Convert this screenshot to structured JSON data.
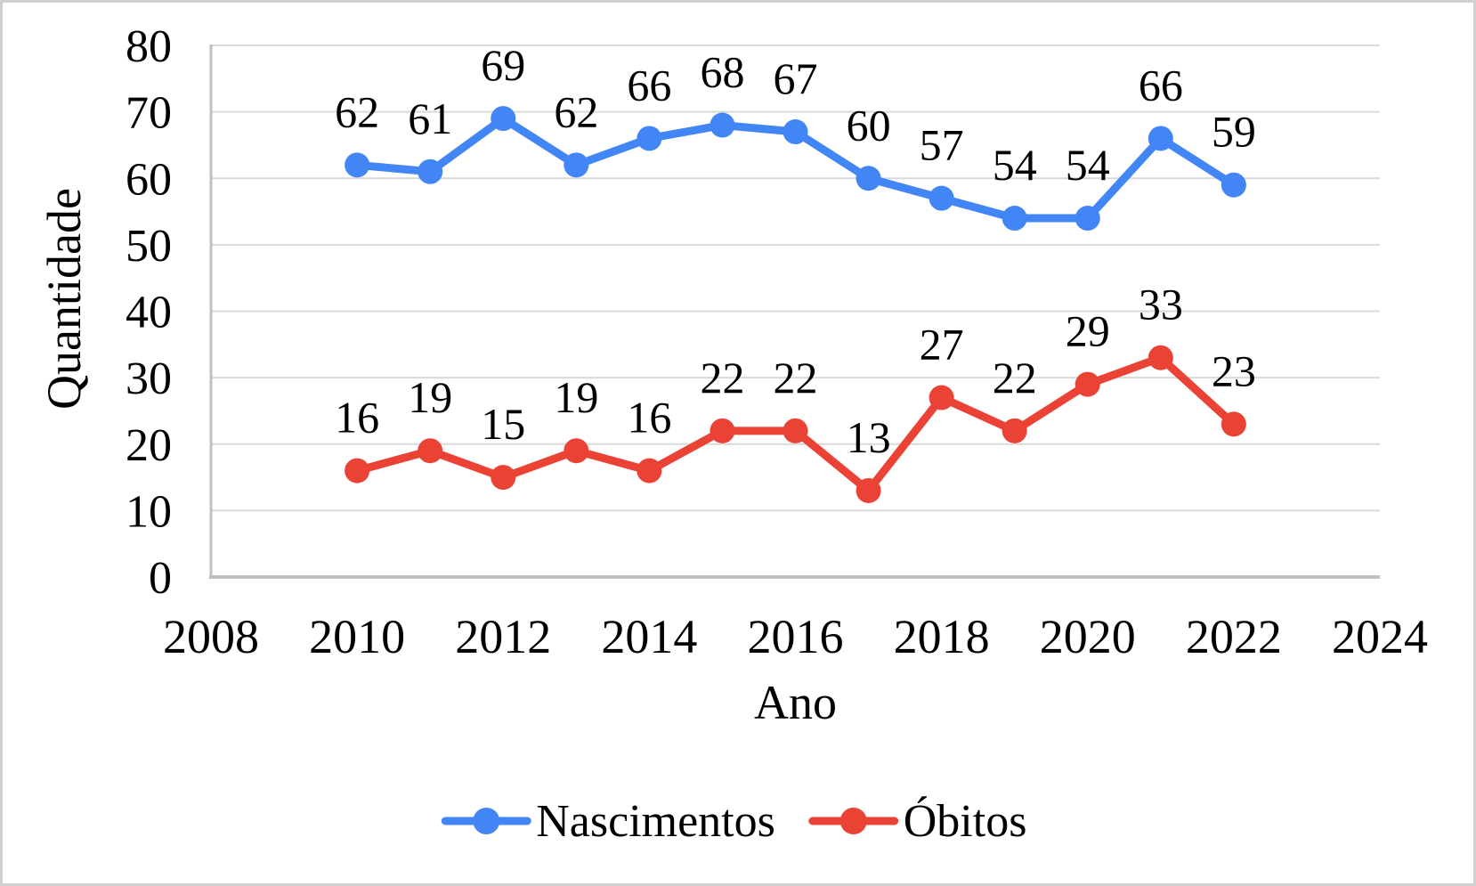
{
  "chart_data": {
    "type": "line",
    "title": "",
    "xlabel": "Ano",
    "ylabel": "Quantidade",
    "x": [
      2010,
      2011,
      2012,
      2013,
      2014,
      2015,
      2016,
      2017,
      2018,
      2019,
      2020,
      2021,
      2022
    ],
    "series": [
      {
        "name": "Nascimentos",
        "color": "#4285F4",
        "values": [
          62,
          61,
          69,
          62,
          66,
          68,
          67,
          60,
          57,
          54,
          54,
          66,
          59
        ]
      },
      {
        "name": "Óbitos",
        "color": "#EA4335",
        "values": [
          16,
          19,
          15,
          19,
          16,
          22,
          22,
          13,
          27,
          22,
          29,
          33,
          23
        ]
      }
    ],
    "xlim": [
      2008,
      2024
    ],
    "ylim": [
      0,
      80
    ],
    "x_ticks": [
      2008,
      2010,
      2012,
      2014,
      2016,
      2018,
      2020,
      2022,
      2024
    ],
    "y_ticks": [
      0,
      10,
      20,
      30,
      40,
      50,
      60,
      70,
      80
    ],
    "grid": "horizontal",
    "data_labels": true,
    "legend_position": "bottom",
    "colors": {
      "gridline": "#D9D9D9",
      "axis_line": "#C0C0C0",
      "label_text": "#000000",
      "background": "#FFFFFF",
      "figure_border": "#D0D0D0"
    }
  }
}
